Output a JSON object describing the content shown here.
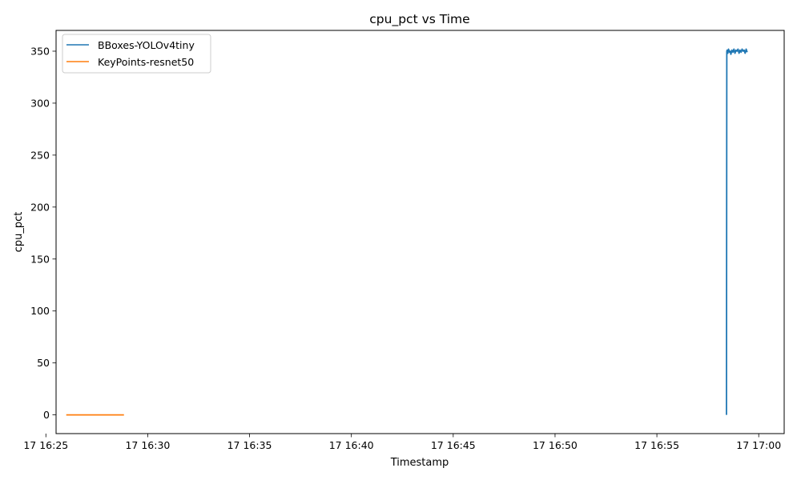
{
  "chart_data": {
    "type": "line",
    "title": "cpu_pct vs Time",
    "xlabel": "Timestamp",
    "ylabel": "cpu_pct",
    "x_ticks": [
      "17 16:25",
      "17 16:30",
      "17 16:35",
      "17 16:40",
      "17 16:45",
      "17 16:50",
      "17 16:55",
      "17 17:00"
    ],
    "y_ticks": [
      "0",
      "50",
      "100",
      "150",
      "200",
      "250",
      "300",
      "350"
    ],
    "xlim": [
      "16:25:30",
      "17:01:15"
    ],
    "ylim": [
      -18,
      370
    ],
    "grid": false,
    "legend_position": "top-left",
    "series": [
      {
        "name": "BBoxes-YOLOv4tiny",
        "color": "#1f77b4",
        "x": [
          "16:58:25",
          "16:58:26",
          "16:58:27",
          "16:58:29",
          "16:58:31",
          "16:58:34",
          "16:58:36",
          "16:58:38",
          "16:58:41",
          "16:58:44",
          "16:58:47",
          "16:58:50",
          "16:58:53",
          "16:58:56",
          "16:58:59",
          "16:59:02",
          "16:59:05",
          "16:59:08",
          "16:59:11",
          "16:59:14",
          "16:59:17",
          "16:59:20",
          "16:59:23",
          "16:59:26"
        ],
        "values": [
          0,
          350,
          351,
          348,
          352,
          349,
          350,
          347,
          351,
          349,
          352,
          348,
          351,
          350,
          352,
          348,
          351,
          349,
          352,
          350,
          351,
          348,
          352,
          349
        ]
      },
      {
        "name": "KeyPoints-resnet50",
        "color": "#ff7f0e",
        "x": [
          "16:26:00",
          "16:28:50"
        ],
        "values": [
          0,
          0
        ]
      }
    ]
  }
}
